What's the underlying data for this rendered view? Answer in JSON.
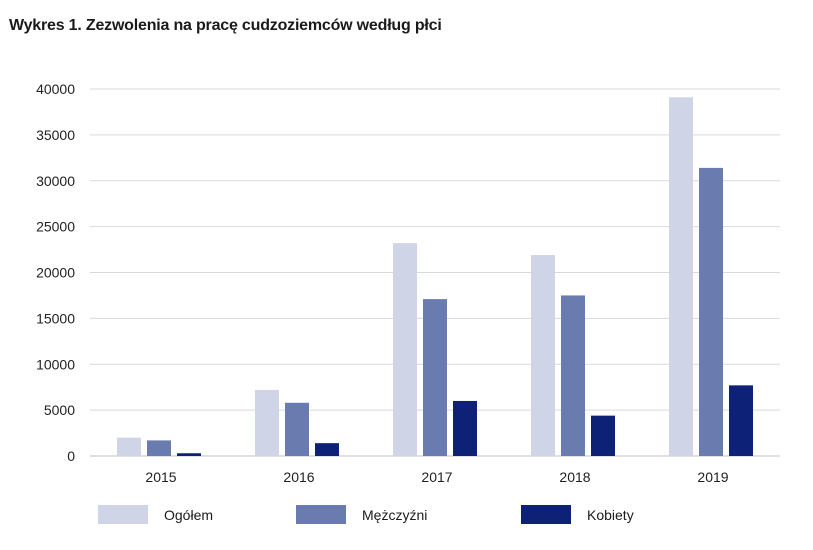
{
  "title": "Wykres 1. Zezwolenia na pracę cudzoziemców według płci",
  "chart_data": {
    "type": "bar",
    "categories": [
      "2015",
      "2016",
      "2017",
      "2018",
      "2019"
    ],
    "series": [
      {
        "name": "Ogółem",
        "color": "#cfd4e6",
        "values": [
          2000,
          7200,
          23200,
          21900,
          39100
        ]
      },
      {
        "name": "Mężczyźni",
        "color": "#6a7bb0",
        "values": [
          1700,
          5800,
          17100,
          17500,
          31400
        ]
      },
      {
        "name": "Kobiety",
        "color": "#0d2277",
        "values": [
          300,
          1400,
          6000,
          4400,
          7700
        ]
      }
    ],
    "ylim": [
      0,
      40000
    ],
    "yticks": [
      "0",
      "5000",
      "10000",
      "15000",
      "20000",
      "25000",
      "30000",
      "35000",
      "40000"
    ],
    "grid": true,
    "legend_position": "bottom"
  }
}
